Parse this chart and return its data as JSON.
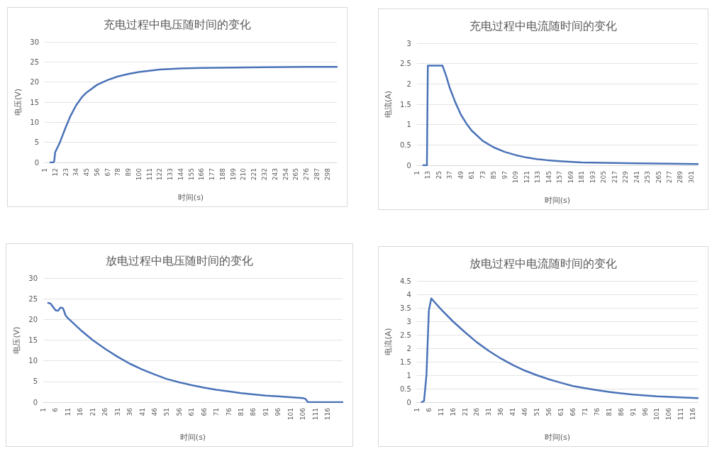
{
  "chart_data": [
    {
      "type": "line",
      "title": "充电过程中电压随时间的变化",
      "xlabel": "时间(s)",
      "ylabel": "电压(V)",
      "xlim": [
        1,
        308
      ],
      "xticks": [
        1,
        12,
        23,
        34,
        45,
        56,
        67,
        78,
        89,
        100,
        111,
        122,
        133,
        144,
        155,
        166,
        177,
        188,
        199,
        210,
        221,
        232,
        243,
        254,
        265,
        276,
        287,
        298
      ],
      "ylim": [
        0,
        30
      ],
      "yticks": [
        0,
        5,
        10,
        15,
        20,
        25,
        30
      ],
      "grid": "y",
      "line_style": "solid",
      "series": [
        {
          "color": "#4a72b8",
          "x": [
            7,
            10,
            11,
            12,
            17,
            23,
            28,
            34,
            40,
            45,
            56,
            67,
            78,
            89,
            100,
            111,
            122,
            144,
            166,
            199,
            232,
            276,
            308
          ],
          "values": [
            0,
            0,
            0.3,
            2.5,
            5,
            8.7,
            11.5,
            14.2,
            16.2,
            17.4,
            19.3,
            20.5,
            21.4,
            22,
            22.5,
            22.8,
            23.1,
            23.4,
            23.5,
            23.6,
            23.7,
            23.8,
            23.8
          ]
        }
      ]
    },
    {
      "type": "line",
      "title": "充电过程中电流随时间的变化",
      "xlabel": "时间(s)",
      "ylabel": "电流(A)",
      "xlim": [
        1,
        308
      ],
      "xticks": [
        1,
        13,
        25,
        37,
        49,
        61,
        73,
        85,
        97,
        109,
        121,
        133,
        145,
        157,
        169,
        181,
        193,
        205,
        217,
        229,
        241,
        253,
        265,
        277,
        289,
        301
      ],
      "ylim": [
        0,
        3
      ],
      "yticks": [
        0,
        0.5,
        1,
        1.5,
        2,
        2.5,
        3
      ],
      "grid": "y",
      "line_style": "solid",
      "series": [
        {
          "color": "#4a72b8",
          "x": [
            8,
            12,
            13,
            29,
            33,
            37,
            43,
            49,
            55,
            61,
            73,
            85,
            97,
            109,
            121,
            133,
            145,
            157,
            181,
            205,
            241,
            277,
            308
          ],
          "values": [
            0,
            0,
            2.45,
            2.45,
            2.2,
            1.9,
            1.55,
            1.25,
            1.03,
            0.85,
            0.6,
            0.44,
            0.33,
            0.25,
            0.19,
            0.15,
            0.12,
            0.1,
            0.07,
            0.06,
            0.05,
            0.04,
            0.03
          ]
        }
      ]
    },
    {
      "type": "line",
      "title": "放电过程中电压随时间的变化",
      "xlabel": "时间(s)",
      "ylabel": "电压(V)",
      "xlim": [
        1,
        122
      ],
      "xticks": [
        1,
        6,
        11,
        16,
        21,
        26,
        31,
        36,
        41,
        46,
        51,
        56,
        61,
        66,
        71,
        76,
        81,
        86,
        91,
        96,
        101,
        106,
        111,
        116
      ],
      "ylim": [
        0,
        30
      ],
      "yticks": [
        0,
        5,
        10,
        15,
        20,
        25,
        30
      ],
      "grid": "y",
      "line_style": "solid",
      "series": [
        {
          "color": "#4a72b8",
          "x": [
            3,
            4,
            6,
            7,
            8,
            9,
            10,
            11,
            16,
            21,
            26,
            31,
            36,
            41,
            46,
            51,
            56,
            61,
            66,
            71,
            76,
            81,
            86,
            91,
            96,
            101,
            106,
            107,
            108,
            122
          ],
          "values": [
            24,
            23.8,
            22.2,
            22.1,
            22.9,
            22.7,
            21,
            20.3,
            17.5,
            15,
            12.9,
            11,
            9.3,
            7.9,
            6.7,
            5.6,
            4.8,
            4.1,
            3.5,
            3,
            2.6,
            2.2,
            1.9,
            1.6,
            1.4,
            1.2,
            1,
            0.8,
            0,
            0
          ]
        }
      ]
    },
    {
      "type": "line",
      "title": "放电过程中电流随时间的变化",
      "xlabel": "时间(s)",
      "ylabel": "电流(A)",
      "xlim": [
        1,
        118
      ],
      "xticks": [
        1,
        6,
        11,
        16,
        21,
        26,
        31,
        36,
        41,
        46,
        51,
        56,
        61,
        66,
        71,
        76,
        81,
        86,
        91,
        96,
        101,
        106,
        111,
        116
      ],
      "ylim": [
        0,
        4.5
      ],
      "yticks": [
        0,
        0.5,
        1,
        1.5,
        2,
        2.5,
        3,
        3.5,
        4,
        4.5
      ],
      "grid": "y",
      "line_style": "solid",
      "series": [
        {
          "color": "#4a72b8",
          "x": [
            3,
            4,
            5,
            6,
            7,
            8,
            11,
            16,
            21,
            26,
            31,
            36,
            41,
            46,
            51,
            56,
            61,
            66,
            71,
            76,
            81,
            86,
            91,
            96,
            101,
            106,
            111,
            118
          ],
          "values": [
            0,
            0.05,
            1,
            3.4,
            3.85,
            3.75,
            3.45,
            3,
            2.6,
            2.22,
            1.9,
            1.62,
            1.38,
            1.17,
            1,
            0.85,
            0.72,
            0.6,
            0.52,
            0.45,
            0.38,
            0.33,
            0.28,
            0.25,
            0.22,
            0.2,
            0.18,
            0.15
          ]
        }
      ]
    }
  ]
}
